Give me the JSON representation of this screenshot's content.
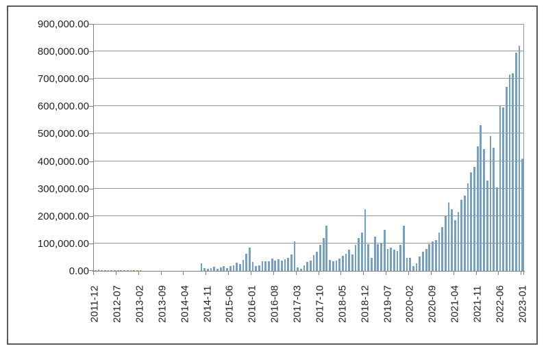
{
  "chart_data": {
    "type": "bar",
    "title": "",
    "xlabel": "",
    "ylabel": "",
    "ylim": [
      0,
      900000
    ],
    "grid": true,
    "legend": "none",
    "bar_color": "#74A0C7",
    "gridline_color": "#969696",
    "axis_color": "#808080",
    "frame_border_color": "#595959",
    "label_color": "#1f1f1f",
    "x_tick_every": 7,
    "x_tick_labels": [
      "2011-12",
      "2012-07",
      "2013-02",
      "2013-09",
      "2014-04",
      "2014-11",
      "2015-06",
      "2016-01",
      "2016-08",
      "2017-03",
      "2017-10",
      "2018-05",
      "2018-12",
      "2019-07",
      "2020-02",
      "2020-09",
      "2021-04",
      "2021-11",
      "2022-06",
      "2023-01"
    ],
    "y_ticks": [
      {
        "value": 900000,
        "label": "900,000.00"
      },
      {
        "value": 800000,
        "label": "800,000.00"
      },
      {
        "value": 700000,
        "label": "700,000.00"
      },
      {
        "value": 600000,
        "label": "600,000.00"
      },
      {
        "value": 500000,
        "label": "500,000.00"
      },
      {
        "value": 400000,
        "label": "400,000.00"
      },
      {
        "value": 300000,
        "label": "300,000.00"
      },
      {
        "value": 200000,
        "label": "200,000.00"
      },
      {
        "value": 100000,
        "label": "100,000.00"
      },
      {
        "value": 0,
        "label": "0.00"
      }
    ],
    "x": [
      "2011-12",
      "2012-01",
      "2012-02",
      "2012-03",
      "2012-04",
      "2012-05",
      "2012-06",
      "2012-07",
      "2012-08",
      "2012-09",
      "2012-10",
      "2012-11",
      "2012-12",
      "2013-01",
      "2013-02",
      "2013-03",
      "2013-04",
      "2013-05",
      "2013-06",
      "2013-07",
      "2013-08",
      "2013-09",
      "2013-10",
      "2013-11",
      "2013-12",
      "2014-01",
      "2014-02",
      "2014-03",
      "2014-04",
      "2014-05",
      "2014-06",
      "2014-07",
      "2014-08",
      "2014-09",
      "2014-10",
      "2014-11",
      "2014-12",
      "2015-01",
      "2015-02",
      "2015-03",
      "2015-04",
      "2015-05",
      "2015-06",
      "2015-07",
      "2015-08",
      "2015-09",
      "2015-10",
      "2015-11",
      "2015-12",
      "2016-01",
      "2016-02",
      "2016-03",
      "2016-04",
      "2016-05",
      "2016-06",
      "2016-07",
      "2016-08",
      "2016-09",
      "2016-10",
      "2016-11",
      "2016-12",
      "2017-01",
      "2017-02",
      "2017-03",
      "2017-04",
      "2017-05",
      "2017-06",
      "2017-07",
      "2017-08",
      "2017-09",
      "2017-10",
      "2017-11",
      "2017-12",
      "2018-01",
      "2018-02",
      "2018-03",
      "2018-04",
      "2018-05",
      "2018-06",
      "2018-07",
      "2018-08",
      "2018-09",
      "2018-10",
      "2018-11",
      "2018-12",
      "2019-01",
      "2019-02",
      "2019-03",
      "2019-04",
      "2019-05",
      "2019-06",
      "2019-07",
      "2019-08",
      "2019-09",
      "2019-10",
      "2019-11",
      "2019-12",
      "2020-01",
      "2020-02",
      "2020-03",
      "2020-04",
      "2020-05",
      "2020-06",
      "2020-07",
      "2020-08",
      "2020-09",
      "2020-10",
      "2020-11",
      "2020-12",
      "2021-01",
      "2021-02",
      "2021-03",
      "2021-04",
      "2021-05",
      "2021-06",
      "2021-07",
      "2021-08",
      "2021-09",
      "2021-10",
      "2021-11",
      "2021-12",
      "2022-01",
      "2022-02",
      "2022-03",
      "2022-04",
      "2022-05",
      "2022-06",
      "2022-07",
      "2022-08",
      "2022-09",
      "2022-10",
      "2022-11",
      "2022-12",
      "2023-01"
    ],
    "values": [
      3000,
      4000,
      3000,
      2500,
      2000,
      3000,
      2000,
      3000,
      2000,
      2000,
      3000,
      2000,
      3000,
      2000,
      1500,
      0,
      0,
      0,
      0,
      0,
      0,
      0,
      0,
      0,
      0,
      0,
      0,
      0,
      0,
      0,
      0,
      0,
      0,
      28000,
      10000,
      8000,
      10000,
      15000,
      7000,
      12000,
      17000,
      10000,
      18000,
      20000,
      30000,
      25000,
      40000,
      62000,
      85000,
      32000,
      17000,
      20000,
      36000,
      34000,
      36000,
      46000,
      38000,
      43000,
      38000,
      43000,
      48000,
      60000,
      106000,
      12000,
      8000,
      19000,
      32000,
      38000,
      58000,
      69000,
      95000,
      120000,
      165000,
      40000,
      36000,
      38000,
      45000,
      55000,
      62000,
      77000,
      60000,
      95000,
      120000,
      140000,
      225000,
      98000,
      48000,
      125000,
      98000,
      100000,
      150000,
      81000,
      86000,
      77000,
      73000,
      94000,
      165000,
      48000,
      48000,
      17000,
      27000,
      52000,
      69000,
      81000,
      98000,
      107000,
      111000,
      140000,
      160000,
      200000,
      250000,
      225000,
      185000,
      215000,
      260000,
      275000,
      320000,
      360000,
      380000,
      455000,
      530000,
      445000,
      330000,
      490000,
      450000,
      305000,
      600000,
      595000,
      670000,
      715000,
      720000,
      795000,
      820000,
      410000
    ]
  }
}
